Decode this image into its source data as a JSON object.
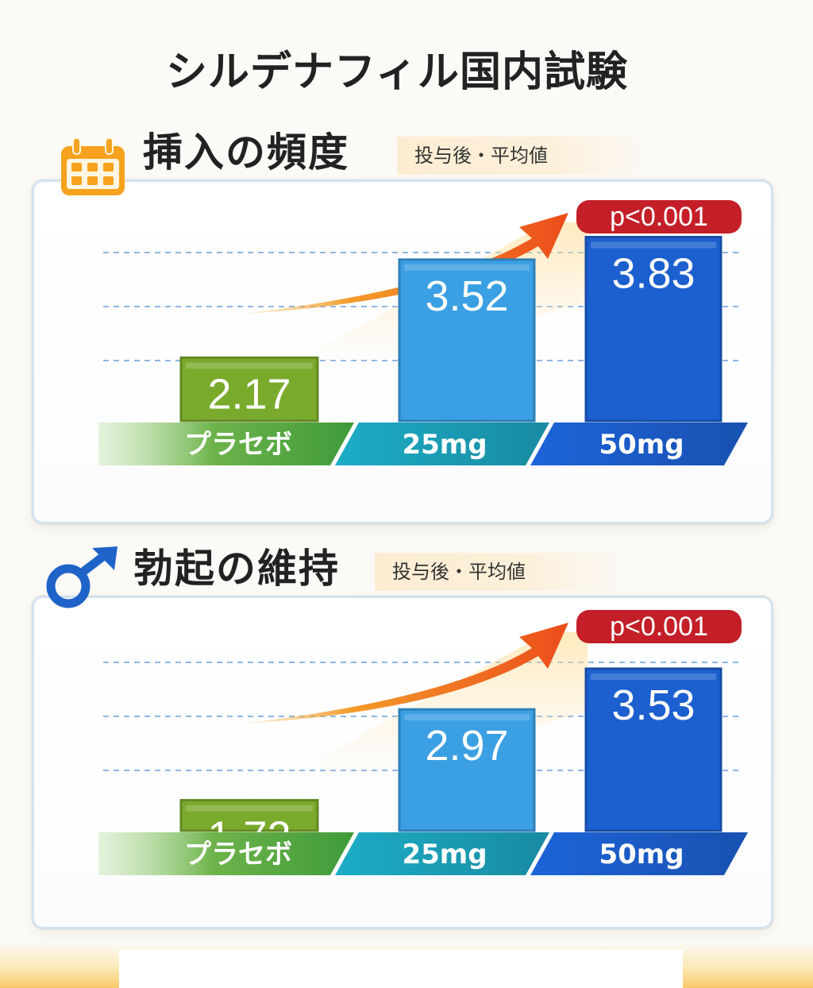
{
  "page": {
    "title": "シルデナフィル国内試験"
  },
  "colors": {
    "placebo": "#7aaa2c",
    "dose25": "#3b9fe3",
    "dose50": "#1c5fcf",
    "accent_orange": "#f0911d",
    "pvalue_red": "#c41f28",
    "label_band_green": "#3f9a3a",
    "label_band_teal": "#1ca4bd",
    "label_band_blue": "#1c5fcf"
  },
  "sections": [
    {
      "title": "挿入の頻度",
      "subtitle": "投与後・平均値",
      "icon": "calendar-icon"
    },
    {
      "title": "勃起の維持",
      "subtitle": "投与後・平均値",
      "icon": "male-symbol-icon"
    }
  ],
  "chart_data": [
    {
      "type": "bar",
      "title": "挿入の頻度",
      "subtitle": "投与後・平均値",
      "categories": [
        "プラセボ",
        "25mg",
        "50mg"
      ],
      "values": [
        2.17,
        3.52,
        3.83
      ],
      "annotation": "p<0.001",
      "trend_arrow": "increasing",
      "gridlines": true
    },
    {
      "type": "bar",
      "title": "勃起の維持",
      "subtitle": "投与後・平均値",
      "categories": [
        "プラセボ",
        "25mg",
        "50mg"
      ],
      "values": [
        1.72,
        2.97,
        3.53
      ],
      "annotation": "p<0.001",
      "trend_arrow": "increasing",
      "gridlines": true
    }
  ]
}
